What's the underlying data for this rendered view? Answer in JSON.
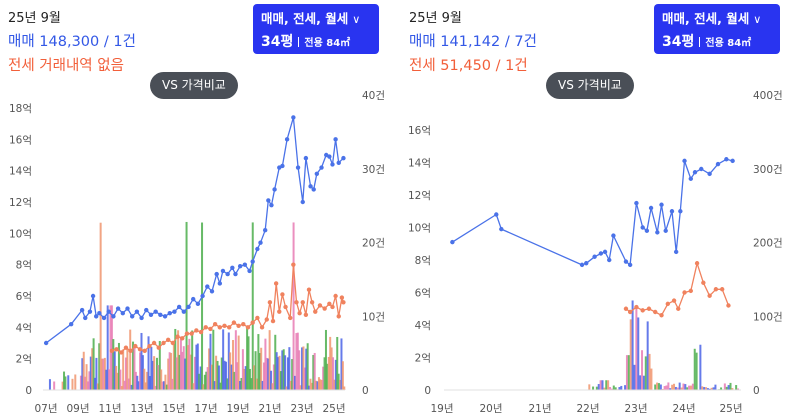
{
  "colors": {
    "sale": "#4a72e8",
    "rent": "#f0825e",
    "filter_bg": "#2934f0",
    "vol_blue": "#4a63e6",
    "vol_orange": "#f0956e",
    "vol_green": "#4cae4c",
    "vol_pink": "#e87bb4"
  },
  "panels": [
    {
      "header": {
        "period": "25년 9월",
        "sale_line": "매매 148,300 / 1건",
        "rent_line": "전세 거래내역 없음"
      },
      "filter": {
        "types": "매매, 전세, 월세",
        "chevron_icon": "chevron-down-icon",
        "pyeong": "34평",
        "area": "전용 84㎡"
      },
      "compare_button": "VS 가격비교"
    },
    {
      "header": {
        "period": "25년 9월",
        "sale_line": "매매 141,142 / 7건",
        "rent_line": "전세 51,450 / 1건"
      },
      "filter": {
        "types": "매매, 전세, 월세",
        "chevron_icon": "chevron-down-icon",
        "pyeong": "34평",
        "area": "전용 84㎡"
      },
      "compare_button": "VS 가격비교"
    }
  ],
  "chart_data": [
    {
      "type": "line",
      "y_left": {
        "ticks": [
          "0",
          "2억",
          "4억",
          "6억",
          "8억",
          "10억",
          "12억",
          "14억",
          "16억",
          "18억"
        ],
        "range": [
          0,
          18
        ]
      },
      "y_right": {
        "ticks": [
          "0",
          "10건",
          "20건",
          "30건",
          "40건"
        ],
        "range": [
          0,
          40
        ]
      },
      "x_ticks": [
        "07년",
        "09년",
        "11년",
        "13년",
        "15년",
        "17년",
        "19년",
        "21년",
        "23년",
        "25년"
      ],
      "x_range": [
        2006.6,
        2025.9
      ],
      "series": [
        {
          "key": "sale",
          "points": [
            [
              2006.8,
              3.0
            ],
            [
              2008.4,
              4.2
            ],
            [
              2009.1,
              5.1
            ],
            [
              2009.3,
              4.6
            ],
            [
              2009.6,
              5.0
            ],
            [
              2009.8,
              6.0
            ],
            [
              2010.0,
              4.7
            ],
            [
              2010.2,
              4.9
            ],
            [
              2010.5,
              4.6
            ],
            [
              2010.8,
              5.0
            ],
            [
              2011.1,
              4.7
            ],
            [
              2011.4,
              5.2
            ],
            [
              2011.7,
              4.9
            ],
            [
              2012.0,
              5.2
            ],
            [
              2012.3,
              4.7
            ],
            [
              2012.6,
              5.0
            ],
            [
              2012.9,
              4.6
            ],
            [
              2013.2,
              5.1
            ],
            [
              2013.5,
              4.8
            ],
            [
              2013.8,
              5.0
            ],
            [
              2014.1,
              4.8
            ],
            [
              2014.4,
              4.7
            ],
            [
              2014.7,
              4.9
            ],
            [
              2015.0,
              5.0
            ],
            [
              2015.3,
              5.3
            ],
            [
              2015.6,
              5.0
            ],
            [
              2015.9,
              5.3
            ],
            [
              2016.2,
              5.8
            ],
            [
              2016.5,
              5.5
            ],
            [
              2016.8,
              6.0
            ],
            [
              2017.1,
              6.6
            ],
            [
              2017.4,
              6.3
            ],
            [
              2017.7,
              7.4
            ],
            [
              2017.9,
              6.8
            ],
            [
              2018.1,
              7.6
            ],
            [
              2018.4,
              7.4
            ],
            [
              2018.7,
              7.8
            ],
            [
              2018.9,
              7.4
            ],
            [
              2019.2,
              7.9
            ],
            [
              2019.5,
              8.0
            ],
            [
              2019.8,
              7.6
            ],
            [
              2020.0,
              8.2
            ],
            [
              2020.3,
              9.0
            ],
            [
              2020.5,
              9.4
            ],
            [
              2020.8,
              10.2
            ],
            [
              2021.0,
              12.1
            ],
            [
              2021.2,
              11.8
            ],
            [
              2021.4,
              12.8
            ],
            [
              2021.7,
              14.2
            ],
            [
              2021.9,
              14.3
            ],
            [
              2022.2,
              16.0
            ],
            [
              2022.6,
              17.4
            ],
            [
              2022.9,
              14.2
            ],
            [
              2023.2,
              12.0
            ],
            [
              2023.4,
              14.8
            ],
            [
              2023.7,
              13.0
            ],
            [
              2023.9,
              12.8
            ],
            [
              2024.1,
              13.8
            ],
            [
              2024.4,
              14.2
            ],
            [
              2024.7,
              15.0
            ],
            [
              2024.9,
              14.9
            ],
            [
              2025.1,
              14.4
            ],
            [
              2025.3,
              16.0
            ],
            [
              2025.5,
              14.5
            ],
            [
              2025.8,
              14.8
            ]
          ]
        },
        {
          "key": "rent",
          "points": [
            [
              2011.0,
              2.5
            ],
            [
              2011.3,
              2.6
            ],
            [
              2011.6,
              2.4
            ],
            [
              2011.9,
              2.7
            ],
            [
              2012.2,
              2.5
            ],
            [
              2012.5,
              2.8
            ],
            [
              2012.8,
              2.6
            ],
            [
              2013.1,
              2.5
            ],
            [
              2013.4,
              2.8
            ],
            [
              2013.7,
              3.0
            ],
            [
              2014.0,
              2.7
            ],
            [
              2014.3,
              3.0
            ],
            [
              2014.6,
              3.2
            ],
            [
              2014.9,
              3.0
            ],
            [
              2015.2,
              3.4
            ],
            [
              2015.5,
              3.3
            ],
            [
              2015.8,
              3.6
            ],
            [
              2016.1,
              3.6
            ],
            [
              2016.4,
              3.8
            ],
            [
              2016.7,
              3.7
            ],
            [
              2017.0,
              4.0
            ],
            [
              2017.3,
              3.9
            ],
            [
              2017.6,
              4.2
            ],
            [
              2017.9,
              4.0
            ],
            [
              2018.2,
              4.1
            ],
            [
              2018.5,
              4.0
            ],
            [
              2018.8,
              4.3
            ],
            [
              2019.1,
              4.1
            ],
            [
              2019.4,
              4.2
            ],
            [
              2019.7,
              4.0
            ],
            [
              2020.0,
              4.3
            ],
            [
              2020.3,
              4.6
            ],
            [
              2020.6,
              4.0
            ],
            [
              2020.9,
              4.5
            ],
            [
              2021.1,
              5.6
            ],
            [
              2021.3,
              4.4
            ],
            [
              2021.5,
              6.8
            ],
            [
              2021.7,
              5.0
            ],
            [
              2021.9,
              6.1
            ],
            [
              2022.1,
              5.3
            ],
            [
              2022.4,
              4.6
            ],
            [
              2022.6,
              8.0
            ],
            [
              2022.8,
              5.6
            ],
            [
              2023.0,
              4.9
            ],
            [
              2023.2,
              5.6
            ],
            [
              2023.4,
              4.8
            ],
            [
              2023.6,
              6.4
            ],
            [
              2023.8,
              5.6
            ],
            [
              2024.0,
              5.0
            ],
            [
              2024.3,
              5.4
            ],
            [
              2024.6,
              5.2
            ],
            [
              2024.9,
              5.5
            ],
            [
              2025.1,
              5.3
            ],
            [
              2025.3,
              6.0
            ],
            [
              2025.5,
              4.7
            ],
            [
              2025.7,
              5.9
            ],
            [
              2025.8,
              5.6
            ]
          ]
        }
      ],
      "volume_max": 40
    },
    {
      "type": "line",
      "y_left": {
        "ticks": [
          "0",
          "2억",
          "4억",
          "6억",
          "8억",
          "10억",
          "12억",
          "14억",
          "16억"
        ],
        "range": [
          0,
          16
        ]
      },
      "y_right": {
        "ticks": [
          "0",
          "100건",
          "200건",
          "300건",
          "400건"
        ],
        "range": [
          0,
          400
        ]
      },
      "x_ticks": [
        "19년",
        "20년",
        "21년",
        "22년",
        "23년",
        "24년",
        "25년"
      ],
      "x_range": [
        2018.85,
        2025.95
      ],
      "series": [
        {
          "key": "sale",
          "points": [
            [
              2019.05,
              9.1
            ],
            [
              2020.1,
              10.8
            ],
            [
              2020.22,
              9.9
            ],
            [
              2022.15,
              7.7
            ],
            [
              2022.25,
              7.8
            ],
            [
              2022.45,
              8.2
            ],
            [
              2022.6,
              8.4
            ],
            [
              2022.7,
              8.5
            ],
            [
              2022.8,
              8.0
            ],
            [
              2022.9,
              9.5
            ],
            [
              2023.2,
              7.9
            ],
            [
              2023.3,
              7.7
            ],
            [
              2023.45,
              11.5
            ],
            [
              2023.6,
              10.0
            ],
            [
              2023.7,
              9.8
            ],
            [
              2023.8,
              11.2
            ],
            [
              2023.95,
              9.7
            ],
            [
              2024.05,
              11.4
            ],
            [
              2024.15,
              9.8
            ],
            [
              2024.3,
              11.0
            ],
            [
              2024.4,
              8.5
            ],
            [
              2024.5,
              11.0
            ],
            [
              2024.6,
              14.1
            ],
            [
              2024.75,
              13.0
            ],
            [
              2024.85,
              13.4
            ],
            [
              2025.0,
              13.6
            ],
            [
              2025.2,
              13.3
            ],
            [
              2025.4,
              13.9
            ],
            [
              2025.6,
              14.2
            ],
            [
              2025.75,
              14.1
            ]
          ]
        },
        {
          "key": "rent",
          "points": [
            [
              2023.2,
              5.0
            ],
            [
              2023.3,
              4.8
            ],
            [
              2023.45,
              5.1
            ],
            [
              2023.6,
              4.9
            ],
            [
              2023.75,
              5.0
            ],
            [
              2023.9,
              4.8
            ],
            [
              2024.05,
              4.6
            ],
            [
              2024.2,
              5.3
            ],
            [
              2024.35,
              5.5
            ],
            [
              2024.45,
              5.0
            ],
            [
              2024.6,
              6.0
            ],
            [
              2024.75,
              6.1
            ],
            [
              2024.9,
              7.8
            ],
            [
              2025.05,
              6.6
            ],
            [
              2025.2,
              5.8
            ],
            [
              2025.35,
              6.2
            ],
            [
              2025.5,
              6.2
            ],
            [
              2025.65,
              5.2
            ]
          ]
        }
      ],
      "volume_max": 400
    }
  ]
}
